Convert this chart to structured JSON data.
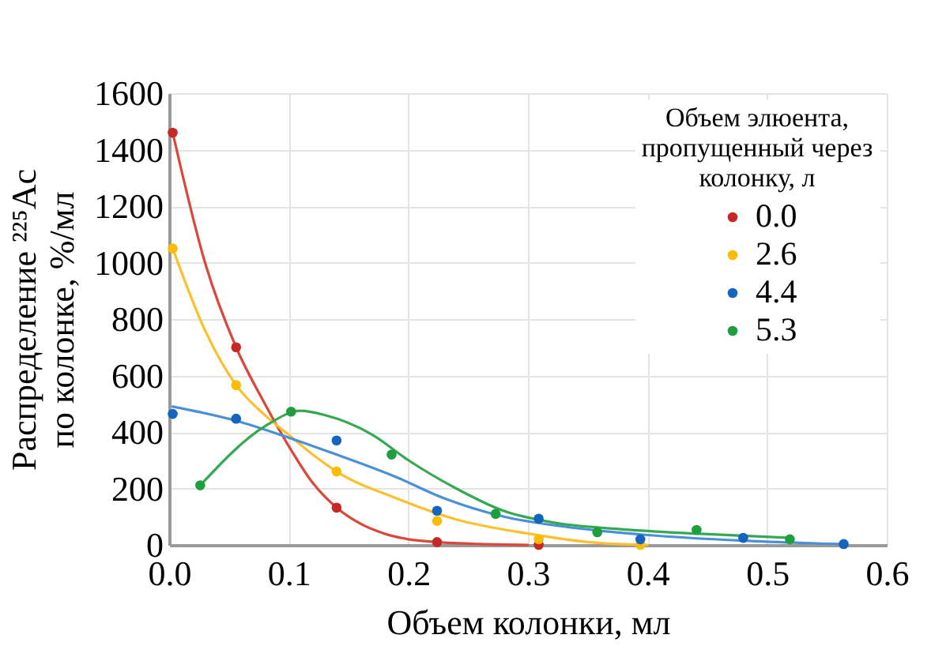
{
  "chart_data": {
    "type": "scatter",
    "xlabel": "Объем колонки, мл",
    "ylabel": "Распределение ²²⁵Ac\nпо колонке, %/мл",
    "legend_title": "Объем элюента,\nпропущенный через\nколонку, л",
    "xlim": [
      0,
      0.6
    ],
    "xticks": [
      {
        "value": 0,
        "label": "0.0"
      },
      {
        "value": 0.1,
        "label": "0.1"
      },
      {
        "value": 0.2,
        "label": "0.2"
      },
      {
        "value": 0.3,
        "label": "0.3"
      },
      {
        "value": 0.4,
        "label": "0.4"
      },
      {
        "value": 0.5,
        "label": "0.5"
      },
      {
        "value": 0.6,
        "label": "0.6"
      }
    ],
    "ylim": [
      0,
      1600
    ],
    "yticks": [
      0,
      200,
      400,
      600,
      800,
      1000,
      1200,
      1400,
      1600
    ],
    "grid": true,
    "legend": "top right",
    "marker": "circle",
    "line_style": "solid",
    "series": [
      {
        "type": "line",
        "marker": "none",
        "color": "#d9483b",
        "x": [
          0.003,
          0.03,
          0.056,
          0.08,
          0.1,
          0.12,
          0.14,
          0.16,
          0.18,
          0.2,
          0.224,
          0.26,
          0.3
        ],
        "values": [
          1460,
          1000,
          700,
          500,
          350,
          220,
          132,
          75,
          40,
          20,
          10,
          3,
          0
        ]
      },
      {
        "type": "line",
        "marker": "none",
        "color": "#fbc02d",
        "x": [
          0.003,
          0.03,
          0.056,
          0.08,
          0.1,
          0.12,
          0.14,
          0.19,
          0.24,
          0.3,
          0.35,
          0.4
        ],
        "values": [
          1050,
          760,
          566,
          460,
          390,
          320,
          260,
          165,
          90,
          40,
          10,
          0
        ]
      },
      {
        "type": "line",
        "marker": "none",
        "color": "#4a90d9",
        "x": [
          0.003,
          0.056,
          0.1,
          0.14,
          0.19,
          0.23,
          0.28,
          0.33,
          0.4,
          0.48,
          0.56
        ],
        "values": [
          490,
          440,
          380,
          320,
          240,
          165,
          100,
          65,
          35,
          15,
          3
        ]
      },
      {
        "type": "line",
        "marker": "none",
        "color": "#34a853",
        "x": [
          0.026,
          0.08,
          0.11,
          0.13,
          0.17,
          0.2,
          0.24,
          0.28,
          0.32,
          0.38,
          0.44,
          0.52
        ],
        "values": [
          211,
          420,
          475,
          460,
          390,
          300,
          200,
          120,
          80,
          55,
          40,
          25
        ]
      },
      {
        "name": "0.0",
        "color": "#c62828",
        "x": [
          0.003,
          0.056,
          0.14,
          0.224,
          0.309
        ],
        "values": [
          1460,
          700,
          132,
          10,
          0
        ]
      },
      {
        "name": "2.6",
        "color": "#fbbc05",
        "x": [
          0.003,
          0.056,
          0.14,
          0.224,
          0.309,
          0.394
        ],
        "values": [
          1050,
          566,
          260,
          85,
          20,
          0
        ]
      },
      {
        "name": "4.4",
        "color": "#1565c0",
        "x": [
          0.003,
          0.056,
          0.14,
          0.224,
          0.309,
          0.394,
          0.48,
          0.564
        ],
        "values": [
          464,
          447,
          370,
          121,
          93,
          20,
          25,
          3
        ]
      },
      {
        "name": "5.3",
        "color": "#1e9e3e",
        "x": [
          0.026,
          0.102,
          0.186,
          0.273,
          0.358,
          0.441,
          0.519
        ],
        "values": [
          211,
          472,
          320,
          110,
          45,
          53,
          20
        ]
      }
    ]
  }
}
